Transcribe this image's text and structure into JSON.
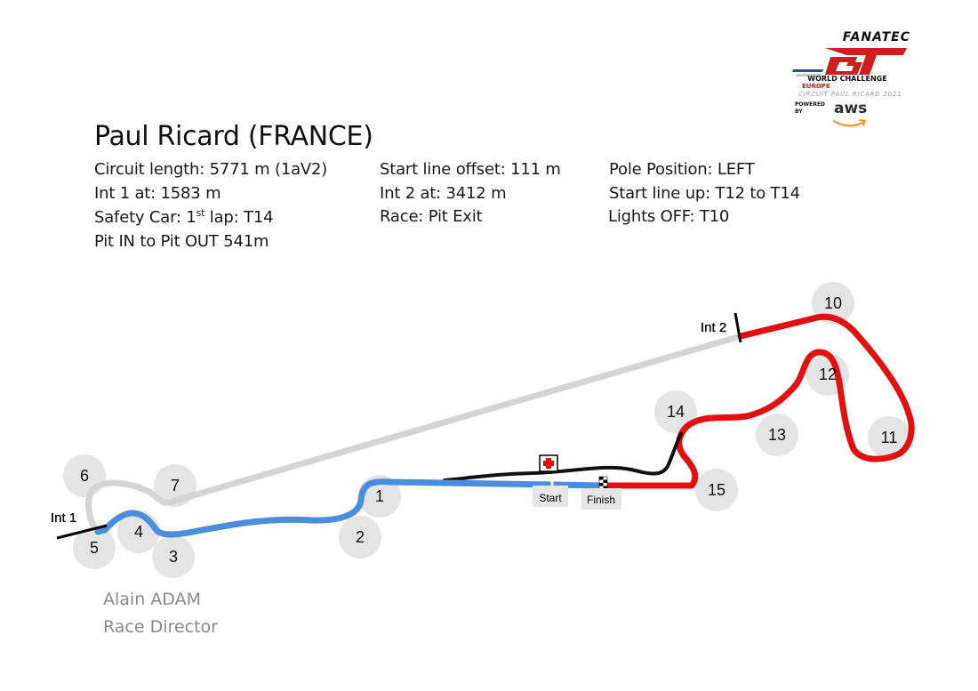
{
  "title": "Paul Ricard (FRANCE)",
  "info": {
    "circuit_length": "Circuit length:  5771 m (1aV2)",
    "int1": "Int 1 at: 1583 m",
    "safety_car_prefix": "Safety Car: 1",
    "safety_car_sup": "st",
    "safety_car_suffix": " lap: T14",
    "pit": "Pit IN to Pit OUT 541m",
    "start_offset": "Start line offset: 111 m",
    "int2": "Int 2 at:  3412 m",
    "race": "Race: Pit Exit",
    "pole": "Pole Position: LEFT",
    "lineup": "Start line up: T12 to T14",
    "lights": "Lights OFF: T10"
  },
  "director": {
    "name": "Alain ADAM",
    "role": "Race Director"
  },
  "logo": {
    "brand": "FANATEC",
    "series": "GT",
    "world_challenge": "WORLD CHALLENGE",
    "region": "EUROPE",
    "circuit": "CIRCUIT PAUL RICARD 2021",
    "powered_by": "POWERED BY",
    "sponsor": "aws"
  },
  "track": {
    "colors": {
      "sector1": "#4a8ee0",
      "sector2": "#d4d4d4",
      "sector3": "#e41010",
      "pitlane": "#111111",
      "corner_bubble": "#e4e4e4"
    },
    "labels": {
      "int1": "Int 1",
      "int2": "Int 2",
      "start": "Start",
      "finish": "Finish"
    },
    "corners": [
      "1",
      "2",
      "3",
      "4",
      "5",
      "6",
      "7",
      "10",
      "11",
      "12",
      "13",
      "14",
      "15"
    ]
  }
}
